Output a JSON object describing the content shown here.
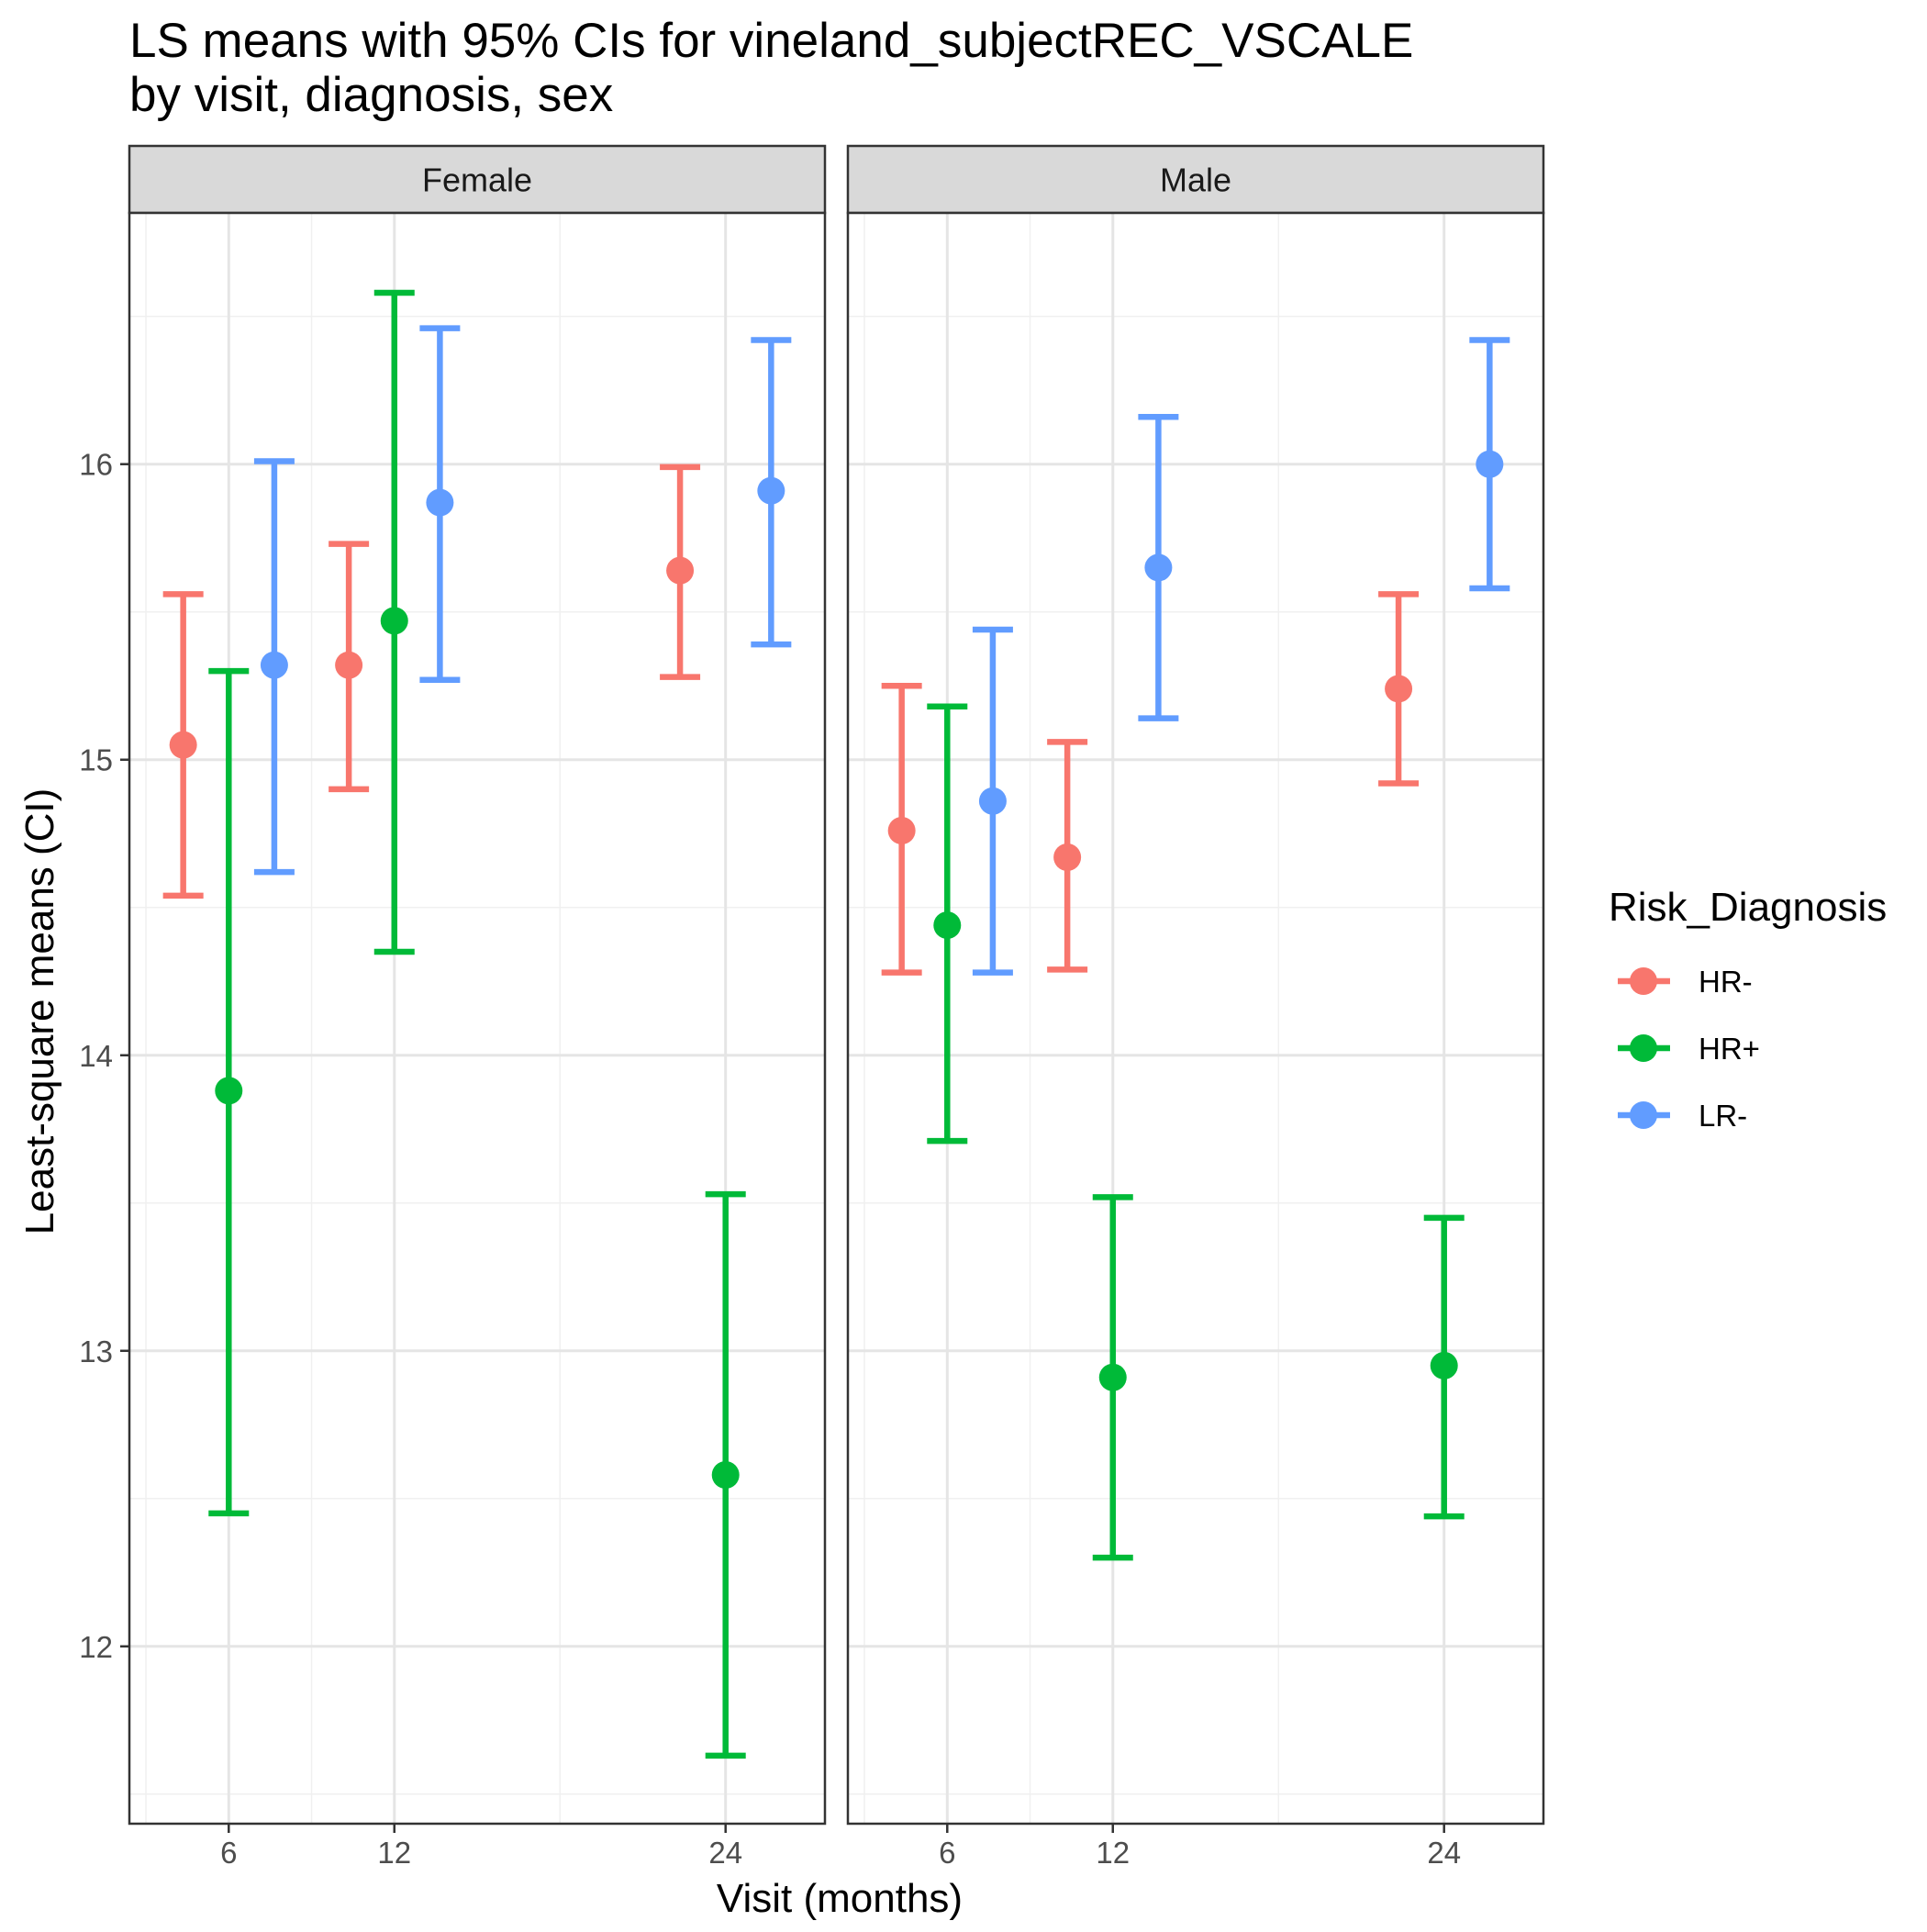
{
  "chart_data": {
    "type": "errorbar",
    "title": "LS means with 95% CIs for vineland_subjectREC_VSCALE",
    "subtitle": "by visit, diagnosis, sex",
    "xlabel": "Visit (months)",
    "ylabel": "Least-square means (CI)",
    "x_ticks": [
      6,
      12,
      24
    ],
    "x_tick_labels": [
      "6",
      "12",
      "24"
    ],
    "y_ticks": [
      12,
      13,
      14,
      15,
      16
    ],
    "y_tick_labels": [
      "12",
      "13",
      "14",
      "15",
      "16"
    ],
    "xlim": [
      2.4,
      27.6
    ],
    "ylim": [
      11.4,
      16.85
    ],
    "dodge_offset": 1.65,
    "grid": true,
    "legend": {
      "title": "Risk_Diagnosis",
      "position": "right",
      "entries": [
        {
          "label": "HR-",
          "color": "#F8766D"
        },
        {
          "label": "HR+",
          "color": "#00BA38"
        },
        {
          "label": "LR-",
          "color": "#619CFF"
        }
      ]
    },
    "groups": [
      "HR-",
      "HR+",
      "LR-"
    ],
    "colors": {
      "HR-": "#F8766D",
      "HR+": "#00BA38",
      "LR-": "#619CFF"
    },
    "panels": [
      {
        "label": "Female",
        "series": [
          {
            "name": "HR-",
            "points": [
              {
                "visit": 6,
                "mean": 15.05,
                "lower": 14.54,
                "upper": 15.56
              },
              {
                "visit": 12,
                "mean": 15.32,
                "lower": 14.9,
                "upper": 15.73
              },
              {
                "visit": 24,
                "mean": 15.64,
                "lower": 15.28,
                "upper": 15.99
              }
            ]
          },
          {
            "name": "HR+",
            "points": [
              {
                "visit": 6,
                "mean": 13.88,
                "lower": 12.45,
                "upper": 15.3
              },
              {
                "visit": 12,
                "mean": 15.47,
                "lower": 14.35,
                "upper": 16.58
              },
              {
                "visit": 24,
                "mean": 12.58,
                "lower": 11.63,
                "upper": 13.53
              }
            ]
          },
          {
            "name": "LR-",
            "points": [
              {
                "visit": 6,
                "mean": 15.32,
                "lower": 14.62,
                "upper": 16.01
              },
              {
                "visit": 12,
                "mean": 15.87,
                "lower": 15.27,
                "upper": 16.46
              },
              {
                "visit": 24,
                "mean": 15.91,
                "lower": 15.39,
                "upper": 16.42
              }
            ]
          }
        ]
      },
      {
        "label": "Male",
        "series": [
          {
            "name": "HR-",
            "points": [
              {
                "visit": 6,
                "mean": 14.76,
                "lower": 14.28,
                "upper": 15.25
              },
              {
                "visit": 12,
                "mean": 14.67,
                "lower": 14.29,
                "upper": 15.06
              },
              {
                "visit": 24,
                "mean": 15.24,
                "lower": 14.92,
                "upper": 15.56
              }
            ]
          },
          {
            "name": "HR+",
            "points": [
              {
                "visit": 6,
                "mean": 14.44,
                "lower": 13.71,
                "upper": 15.18
              },
              {
                "visit": 12,
                "mean": 12.91,
                "lower": 12.3,
                "upper": 13.52
              },
              {
                "visit": 24,
                "mean": 12.95,
                "lower": 12.44,
                "upper": 13.45
              }
            ]
          },
          {
            "name": "LR-",
            "points": [
              {
                "visit": 6,
                "mean": 14.86,
                "lower": 14.28,
                "upper": 15.44
              },
              {
                "visit": 12,
                "mean": 15.65,
                "lower": 15.14,
                "upper": 16.16
              },
              {
                "visit": 24,
                "mean": 16.0,
                "lower": 15.58,
                "upper": 16.42
              }
            ]
          }
        ]
      }
    ]
  }
}
